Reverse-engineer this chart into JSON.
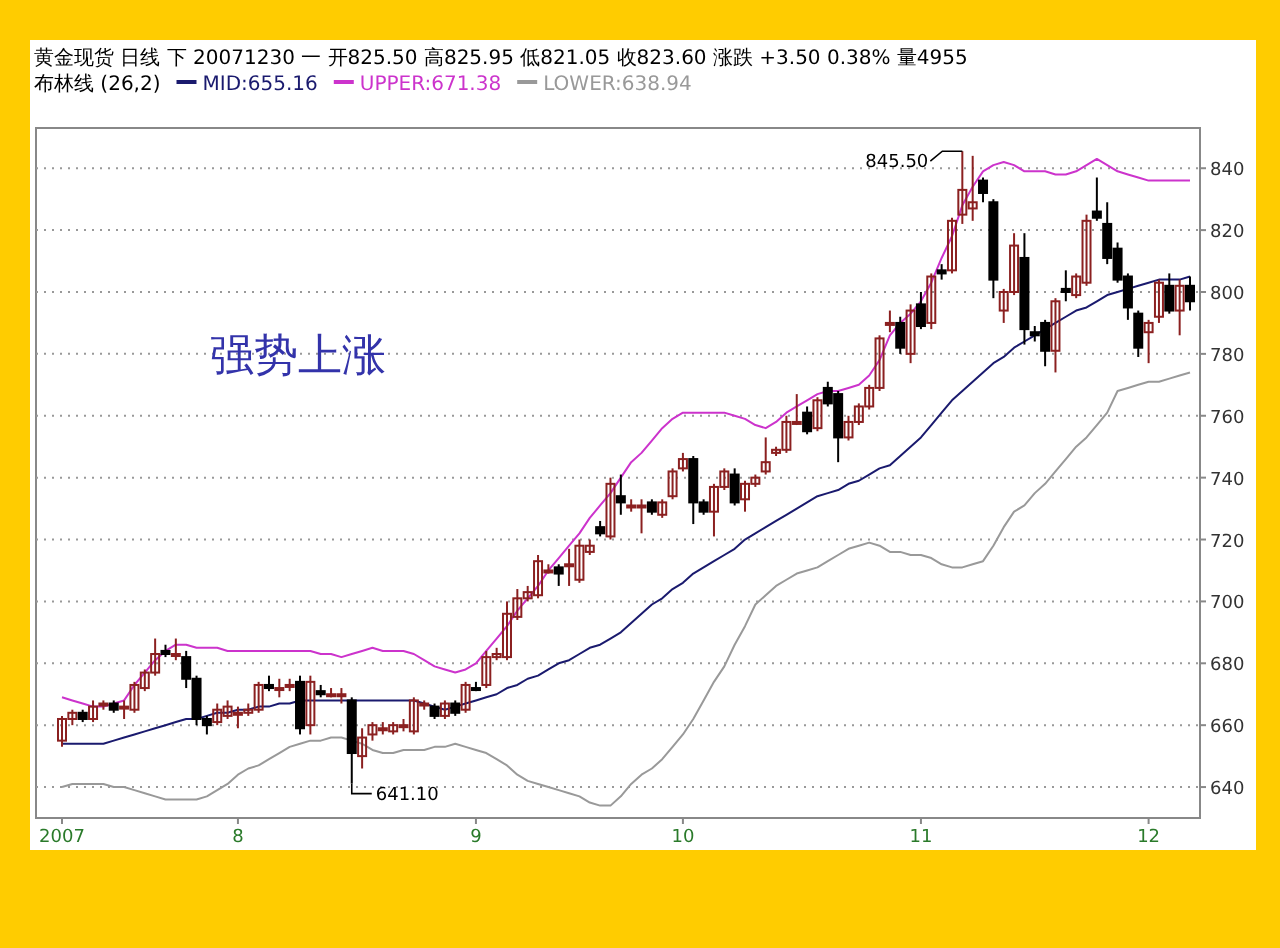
{
  "chart_data": {
    "type": "candlestick",
    "title": "黄金现货 日线 下 20071230 一 开825.50 高825.95 低821.05 收823.60 涨跌 +3.50 0.38% 量4955",
    "legend_title": "布林线 (26,2)",
    "legend": "top left",
    "grid": "y",
    "ylim": [
      630,
      853
    ],
    "yticks": [
      640,
      660,
      680,
      700,
      720,
      740,
      760,
      780,
      800,
      820,
      840
    ],
    "categories": [
      "2007",
      null,
      null,
      null,
      null,
      null,
      null,
      null,
      null,
      null,
      null,
      null,
      null,
      null,
      null,
      null,
      null,
      "8",
      null,
      null,
      null,
      null,
      null,
      null,
      null,
      null,
      null,
      null,
      null,
      null,
      null,
      null,
      null,
      null,
      null,
      null,
      null,
      null,
      null,
      null,
      "9",
      null,
      null,
      null,
      null,
      null,
      null,
      null,
      null,
      null,
      null,
      null,
      null,
      null,
      null,
      null,
      null,
      null,
      null,
      null,
      "10",
      null,
      null,
      null,
      null,
      null,
      null,
      null,
      null,
      null,
      null,
      null,
      null,
      null,
      null,
      null,
      null,
      null,
      null,
      null,
      null,
      null,
      null,
      "11",
      null,
      null,
      null,
      null,
      null,
      null,
      null,
      null,
      null,
      null,
      null,
      null,
      null,
      null,
      null,
      null,
      null,
      null,
      null,
      null,
      null,
      "12",
      null,
      null,
      null,
      null
    ],
    "ohlc": [
      [
        655,
        663,
        653,
        662
      ],
      [
        662,
        665,
        660,
        664
      ],
      [
        664,
        665,
        661,
        662
      ],
      [
        662,
        668,
        661,
        666
      ],
      [
        667,
        668,
        665,
        667
      ],
      [
        667,
        668,
        664,
        665
      ],
      [
        666,
        668,
        662,
        666
      ],
      [
        665,
        674,
        664,
        673
      ],
      [
        672,
        678,
        671,
        677
      ],
      [
        677,
        688,
        676,
        683
      ],
      [
        684,
        686,
        682,
        683
      ],
      [
        683,
        688,
        681,
        683
      ],
      [
        682,
        684,
        672,
        675
      ],
      [
        675,
        676,
        660,
        662
      ],
      [
        662,
        663,
        657,
        660
      ],
      [
        661,
        667,
        660,
        665
      ],
      [
        663,
        668,
        662,
        666
      ],
      [
        664,
        666,
        659,
        664
      ],
      [
        664,
        667,
        663,
        665
      ],
      [
        665,
        674,
        664,
        673
      ],
      [
        673,
        676,
        671,
        672
      ],
      [
        672,
        675,
        669,
        672
      ],
      [
        673,
        675,
        671,
        673
      ],
      [
        674,
        676,
        657,
        659
      ],
      [
        660,
        676,
        657,
        674
      ],
      [
        671,
        673,
        669,
        670
      ],
      [
        670,
        672,
        669,
        670
      ],
      [
        670,
        672,
        667,
        670
      ],
      [
        668,
        669,
        641.1,
        651
      ],
      [
        650,
        659,
        646,
        656
      ],
      [
        657,
        661,
        655,
        660
      ],
      [
        659,
        661,
        657,
        659
      ],
      [
        658,
        661,
        657,
        660
      ],
      [
        660,
        662,
        658,
        660
      ],
      [
        658,
        669,
        657,
        668
      ],
      [
        667,
        668,
        665,
        667
      ],
      [
        666,
        667,
        662,
        663
      ],
      [
        663,
        668,
        662,
        667
      ],
      [
        667,
        668,
        663,
        664
      ],
      [
        665,
        674,
        664,
        673
      ],
      [
        672,
        674,
        671,
        672
      ],
      [
        673,
        684,
        672,
        682
      ],
      [
        682,
        685,
        681,
        683
      ],
      [
        682,
        700,
        681,
        696
      ],
      [
        695,
        704,
        694,
        701
      ],
      [
        701,
        705,
        700,
        703
      ],
      [
        702,
        715,
        701,
        713
      ],
      [
        710,
        712,
        709,
        710
      ],
      [
        711,
        712,
        705,
        709
      ],
      [
        712,
        717,
        705,
        712
      ],
      [
        707,
        720,
        706,
        718
      ],
      [
        716,
        720,
        715,
        718
      ],
      [
        724,
        726,
        721,
        722
      ],
      [
        721,
        740,
        720,
        738
      ],
      [
        734,
        741,
        728,
        732
      ],
      [
        731,
        733,
        729,
        731
      ],
      [
        731,
        733,
        722,
        731
      ],
      [
        732,
        733,
        728,
        729
      ],
      [
        728,
        733,
        727,
        732
      ],
      [
        734,
        743,
        733,
        742
      ],
      [
        743,
        748,
        742,
        746
      ],
      [
        746,
        747,
        725,
        732
      ],
      [
        732,
        733,
        728,
        729
      ],
      [
        729,
        738,
        721,
        737
      ],
      [
        737,
        743,
        736,
        742
      ],
      [
        741,
        743,
        731,
        732
      ],
      [
        733,
        739,
        729,
        738
      ],
      [
        738,
        741,
        737,
        740
      ],
      [
        742,
        753,
        741,
        745
      ],
      [
        748,
        750,
        747,
        749
      ],
      [
        749,
        760,
        748,
        758
      ],
      [
        758,
        767,
        757,
        758
      ],
      [
        761,
        763,
        754,
        755
      ],
      [
        756,
        766,
        755,
        765
      ],
      [
        769,
        771,
        763,
        764
      ],
      [
        767,
        768,
        745,
        753
      ],
      [
        753,
        760,
        752,
        758
      ],
      [
        758,
        764,
        757,
        763
      ],
      [
        763,
        770,
        762,
        769
      ],
      [
        769,
        786,
        768,
        785
      ],
      [
        790,
        794,
        787,
        790
      ],
      [
        790,
        792,
        780,
        782
      ],
      [
        780,
        796,
        777,
        794
      ],
      [
        796,
        800,
        788,
        789
      ],
      [
        790,
        806,
        788,
        805
      ],
      [
        807,
        809,
        804,
        806
      ],
      [
        807,
        824,
        806,
        823
      ],
      [
        825,
        845.5,
        822,
        833
      ],
      [
        827,
        844,
        823,
        829
      ],
      [
        836,
        837,
        829,
        832
      ],
      [
        829,
        830,
        798,
        804
      ],
      [
        794,
        801,
        790,
        800
      ],
      [
        800,
        819,
        799,
        815
      ],
      [
        811,
        819,
        783,
        788
      ],
      [
        787,
        789,
        784,
        786
      ],
      [
        790,
        791,
        776,
        781
      ],
      [
        781,
        798,
        774,
        797
      ],
      [
        801,
        807,
        797,
        800
      ],
      [
        799,
        806,
        798,
        805
      ],
      [
        803,
        825,
        802,
        823
      ],
      [
        826,
        837,
        823,
        824
      ],
      [
        822,
        829,
        809,
        811
      ],
      [
        814,
        816,
        803,
        804
      ],
      [
        805,
        806,
        791,
        795
      ],
      [
        793,
        794,
        779,
        782
      ],
      [
        787,
        791,
        777,
        790
      ],
      [
        792,
        804,
        790,
        803
      ],
      [
        802,
        806,
        793,
        794
      ],
      [
        794,
        804,
        786,
        802
      ],
      [
        802,
        805,
        794,
        797
      ]
    ],
    "colors": [
      "#8b2020",
      "#8b2020",
      "#000000",
      "#8b2020",
      "#8b2020",
      "#000000",
      "#8b2020",
      "#8b2020",
      "#8b2020",
      "#8b2020",
      "#000000",
      "#8b2020",
      "#000000",
      "#000000",
      "#000000",
      "#8b2020",
      "#8b2020",
      "#8b2020",
      "#8b2020",
      "#8b2020",
      "#000000",
      "#8b2020",
      "#8b2020",
      "#000000",
      "#8b2020",
      "#000000",
      "#8b2020",
      "#8b2020",
      "#000000",
      "#8b2020",
      "#8b2020",
      "#8b2020",
      "#8b2020",
      "#8b2020",
      "#8b2020",
      "#8b2020",
      "#000000",
      "#8b2020",
      "#000000",
      "#8b2020",
      "#000000",
      "#8b2020",
      "#8b2020",
      "#8b2020",
      "#8b2020",
      "#8b2020",
      "#8b2020",
      "#8b2020",
      "#000000",
      "#8b2020",
      "#8b2020",
      "#8b2020",
      "#000000",
      "#8b2020",
      "#000000",
      "#8b2020",
      "#8b2020",
      "#000000",
      "#8b2020",
      "#8b2020",
      "#8b2020",
      "#000000",
      "#000000",
      "#8b2020",
      "#8b2020",
      "#000000",
      "#8b2020",
      "#8b2020",
      "#8b2020",
      "#8b2020",
      "#8b2020",
      "#8b2020",
      "#000000",
      "#8b2020",
      "#000000",
      "#000000",
      "#8b2020",
      "#8b2020",
      "#8b2020",
      "#8b2020",
      "#8b2020",
      "#000000",
      "#8b2020",
      "#000000",
      "#8b2020",
      "#000000",
      "#8b2020",
      "#8b2020",
      "#8b2020",
      "#000000",
      "#000000",
      "#8b2020",
      "#8b2020",
      "#000000",
      "#000000",
      "#000000",
      "#8b2020",
      "#000000",
      "#8b2020",
      "#8b2020",
      "#000000",
      "#000000",
      "#000000",
      "#000000",
      "#000000",
      "#8b2020",
      "#8b2020",
      "#000000",
      "#8b2020",
      "#000000"
    ],
    "series": [
      {
        "name": "MID:655.16",
        "type": "line",
        "color": "#1a1a6e",
        "values": [
          654,
          654,
          654,
          654,
          654,
          655,
          656,
          657,
          658,
          659,
          660,
          661,
          662,
          662,
          663,
          664,
          664,
          665,
          665,
          666,
          666,
          667,
          667,
          668,
          668,
          668,
          668,
          668,
          668,
          668,
          668,
          668,
          668,
          668,
          668,
          667,
          666,
          665,
          666,
          667,
          668,
          669,
          670,
          672,
          673,
          675,
          676,
          678,
          680,
          681,
          683,
          685,
          686,
          688,
          690,
          693,
          696,
          699,
          701,
          704,
          706,
          709,
          711,
          713,
          715,
          717,
          720,
          722,
          724,
          726,
          728,
          730,
          732,
          734,
          735,
          736,
          738,
          739,
          741,
          743,
          744,
          747,
          750,
          753,
          757,
          761,
          765,
          768,
          771,
          774,
          777,
          779,
          782,
          784,
          786,
          788,
          790,
          792,
          794,
          795,
          797,
          799,
          800,
          801,
          802,
          803,
          804,
          804,
          804,
          805
        ]
      },
      {
        "name": "UPPER:671.38",
        "type": "line",
        "color": "#cc33cc",
        "values": [
          669,
          668,
          667,
          666,
          666,
          667,
          668,
          673,
          677,
          681,
          684,
          686,
          686,
          685,
          685,
          685,
          684,
          684,
          684,
          684,
          684,
          684,
          684,
          684,
          684,
          683,
          683,
          682,
          683,
          684,
          685,
          684,
          684,
          684,
          683,
          681,
          679,
          678,
          677,
          678,
          680,
          684,
          688,
          692,
          697,
          701,
          705,
          710,
          714,
          718,
          722,
          727,
          731,
          735,
          740,
          745,
          748,
          752,
          756,
          759,
          761,
          761,
          761,
          761,
          761,
          760,
          759,
          757,
          756,
          758,
          761,
          763,
          765,
          767,
          768,
          768,
          769,
          770,
          773,
          778,
          786,
          790,
          793,
          797,
          803,
          811,
          818,
          828,
          834,
          839,
          841,
          842,
          841,
          839,
          839,
          839,
          838,
          838,
          839,
          841,
          843,
          841,
          839,
          838,
          837,
          836,
          836,
          836,
          836,
          836
        ]
      },
      {
        "name": "LOWER:638.94",
        "type": "line",
        "color": "#999999",
        "values": [
          640,
          641,
          641,
          641,
          641,
          640,
          640,
          639,
          638,
          637,
          636,
          636,
          636,
          636,
          637,
          639,
          641,
          644,
          646,
          647,
          649,
          651,
          653,
          654,
          655,
          655,
          656,
          656,
          655,
          654,
          652,
          651,
          651,
          652,
          652,
          652,
          653,
          653,
          654,
          653,
          652,
          651,
          649,
          647,
          644,
          642,
          641,
          640,
          639,
          638,
          637,
          635,
          634,
          634,
          637,
          641,
          644,
          646,
          649,
          653,
          657,
          662,
          668,
          674,
          679,
          686,
          692,
          699,
          702,
          705,
          707,
          709,
          710,
          711,
          713,
          715,
          717,
          718,
          719,
          718,
          716,
          716,
          715,
          715,
          714,
          712,
          711,
          711,
          712,
          713,
          718,
          724,
          729,
          731,
          735,
          738,
          742,
          746,
          750,
          753,
          757,
          761,
          768,
          769,
          770,
          771,
          771,
          772,
          773,
          774
        ]
      }
    ],
    "annotations": [
      "强势上涨",
      "845.50",
      "641.10"
    ]
  }
}
